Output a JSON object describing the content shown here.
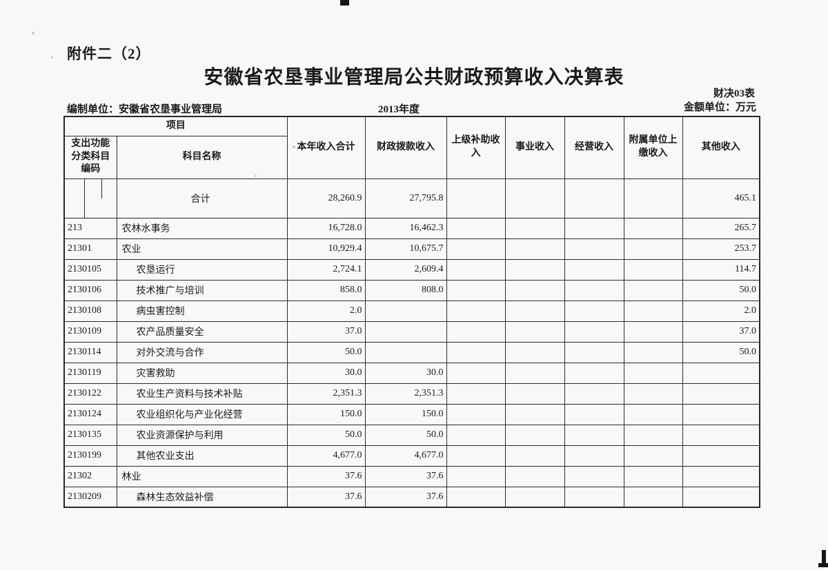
{
  "page": {
    "attachment_label": "附件二（2）",
    "title": "安徽省农垦事业管理局公共财政预算收入决算表",
    "form_code": "财决03表",
    "unit_note": "金额单位：万元",
    "prepared_by_label": "编制单位：",
    "prepared_by": "安徽省农垦事业管理局",
    "year": "2013年度"
  },
  "table": {
    "header": {
      "project": "项目",
      "code": "支出功能分类科目编码",
      "subject_name": "科目名称",
      "columns": [
        "本年收入合计",
        "财政拨款收入",
        "上级补助收入",
        "事业收入",
        "经营收入",
        "附属单位上缴收入",
        "其他收入"
      ]
    },
    "rows": [
      {
        "code": "",
        "name": "合计",
        "name_align": "center",
        "code_boxes": true,
        "values": [
          "28,260.9",
          "27,795.8",
          "",
          "",
          "",
          "",
          "465.1"
        ]
      },
      {
        "code": "213",
        "name": "农林水事务",
        "indent": 0,
        "values": [
          "16,728.0",
          "16,462.3",
          "",
          "",
          "",
          "",
          "265.7"
        ]
      },
      {
        "code": "21301",
        "name": "农业",
        "indent": 0,
        "values": [
          "10,929.4",
          "10,675.7",
          "",
          "",
          "",
          "",
          "253.7"
        ]
      },
      {
        "code": "2130105",
        "name": "农垦运行",
        "indent": 1,
        "values": [
          "2,724.1",
          "2,609.4",
          "",
          "",
          "",
          "",
          "114.7"
        ]
      },
      {
        "code": "2130106",
        "name": "技术推广与培训",
        "indent": 1,
        "values": [
          "858.0",
          "808.0",
          "",
          "",
          "",
          "",
          "50.0"
        ]
      },
      {
        "code": "2130108",
        "name": "病虫害控制",
        "indent": 1,
        "values": [
          "2.0",
          "",
          "",
          "",
          "",
          "",
          "2.0"
        ]
      },
      {
        "code": "2130109",
        "name": "农产品质量安全",
        "indent": 1,
        "values": [
          "37.0",
          "",
          "",
          "",
          "",
          "",
          "37.0"
        ]
      },
      {
        "code": "2130114",
        "name": "对外交流与合作",
        "indent": 1,
        "values": [
          "50.0",
          "",
          "",
          "",
          "",
          "",
          "50.0"
        ]
      },
      {
        "code": "2130119",
        "name": "灾害救助",
        "indent": 1,
        "values": [
          "30.0",
          "30.0",
          "",
          "",
          "",
          "",
          ""
        ]
      },
      {
        "code": "2130122",
        "name": "农业生产资料与技术补贴",
        "indent": 1,
        "values": [
          "2,351.3",
          "2,351.3",
          "",
          "",
          "",
          "",
          ""
        ]
      },
      {
        "code": "2130124",
        "name": "农业组织化与产业化经营",
        "indent": 1,
        "values": [
          "150.0",
          "150.0",
          "",
          "",
          "",
          "",
          ""
        ]
      },
      {
        "code": "2130135",
        "name": "农业资源保护与利用",
        "indent": 1,
        "values": [
          "50.0",
          "50.0",
          "",
          "",
          "",
          "",
          ""
        ]
      },
      {
        "code": "2130199",
        "name": "其他农业支出",
        "indent": 1,
        "values": [
          "4,677.0",
          "4,677.0",
          "",
          "",
          "",
          "",
          ""
        ]
      },
      {
        "code": "21302",
        "name": "林业",
        "indent": 0,
        "values": [
          "37.6",
          "37.6",
          "",
          "",
          "",
          "",
          ""
        ]
      },
      {
        "code": "2130209",
        "name": "森林生态效益补偿",
        "indent": 1,
        "values": [
          "37.6",
          "37.6",
          "",
          "",
          "",
          "",
          ""
        ]
      }
    ]
  },
  "colors": {
    "paper": "#f8f8f6",
    "ink": "#1a1a1a",
    "border": "#2b2b2b"
  }
}
